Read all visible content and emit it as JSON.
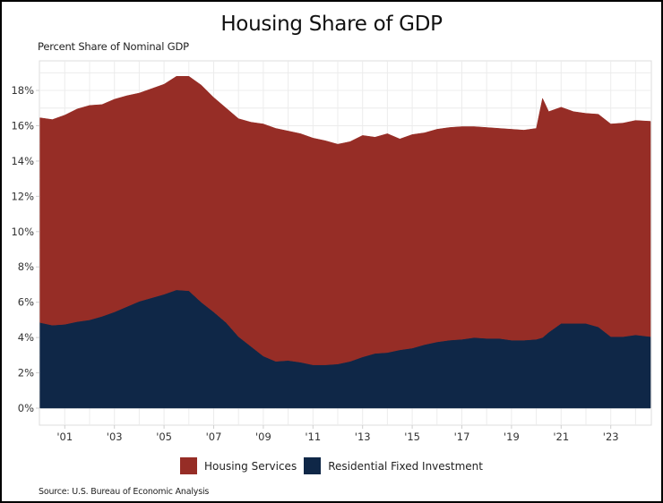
{
  "chart_data": {
    "type": "area",
    "stacked": true,
    "title": "Housing Share of GDP",
    "ylabel": "Percent Share of Nominal GDP",
    "xlabel": "",
    "source": "Source: U.S. Bureau of Economic Analysis",
    "xlim": [
      2000.0,
      2024.6
    ],
    "ylim": [
      0,
      19.5
    ],
    "grid": true,
    "legend_position": "bottom",
    "y_ticks": [
      0,
      2,
      4,
      6,
      8,
      10,
      12,
      14,
      16,
      18
    ],
    "y_tick_labels": [
      "0%",
      "2%",
      "4%",
      "6%",
      "8%",
      "10%",
      "12%",
      "14%",
      "16%",
      "18%"
    ],
    "x_ticks": [
      2001,
      2003,
      2005,
      2007,
      2009,
      2011,
      2013,
      2015,
      2017,
      2019,
      2021,
      2023
    ],
    "x_tick_labels": [
      "'01",
      "'03",
      "'05",
      "'07",
      "'09",
      "'11",
      "'13",
      "'15",
      "'17",
      "'19",
      "'21",
      "'23"
    ],
    "x": [
      2000.0,
      2000.5,
      2001.0,
      2001.5,
      2002.0,
      2002.5,
      2003.0,
      2003.5,
      2004.0,
      2004.5,
      2005.0,
      2005.5,
      2006.0,
      2006.5,
      2007.0,
      2007.5,
      2008.0,
      2008.5,
      2009.0,
      2009.5,
      2010.0,
      2010.5,
      2011.0,
      2011.5,
      2012.0,
      2012.5,
      2013.0,
      2013.5,
      2014.0,
      2014.5,
      2015.0,
      2015.5,
      2016.0,
      2016.5,
      2017.0,
      2017.5,
      2018.0,
      2018.5,
      2019.0,
      2019.5,
      2020.0,
      2020.25,
      2020.5,
      2021.0,
      2021.5,
      2022.0,
      2022.5,
      2023.0,
      2023.5,
      2024.0,
      2024.6
    ],
    "series": [
      {
        "name": "Residential Fixed Investment",
        "color": "#0f2747",
        "values": [
          4.85,
          4.7,
          4.75,
          4.9,
          5.0,
          5.2,
          5.45,
          5.75,
          6.05,
          6.25,
          6.45,
          6.7,
          6.65,
          6.0,
          5.45,
          4.85,
          4.05,
          3.5,
          2.95,
          2.65,
          2.7,
          2.6,
          2.45,
          2.45,
          2.5,
          2.65,
          2.9,
          3.1,
          3.15,
          3.3,
          3.4,
          3.6,
          3.75,
          3.85,
          3.9,
          4.0,
          3.95,
          3.95,
          3.85,
          3.85,
          3.9,
          4.0,
          4.3,
          4.8,
          4.8,
          4.8,
          4.6,
          4.05,
          4.05,
          4.15,
          4.05
        ]
      },
      {
        "name": "Housing Services",
        "color": "#962d26",
        "values": [
          11.6,
          11.65,
          11.85,
          12.05,
          12.15,
          12.0,
          12.05,
          11.95,
          11.8,
          11.85,
          11.9,
          12.1,
          12.15,
          12.3,
          12.15,
          12.15,
          12.35,
          12.7,
          13.15,
          13.2,
          13.0,
          12.95,
          12.85,
          12.7,
          12.45,
          12.45,
          12.55,
          12.25,
          12.4,
          11.95,
          12.1,
          12.0,
          12.05,
          12.05,
          12.05,
          11.95,
          11.95,
          11.9,
          11.95,
          11.9,
          11.95,
          13.55,
          12.5,
          12.25,
          12.0,
          11.9,
          12.05,
          12.05,
          12.1,
          12.15,
          12.2
        ]
      }
    ]
  }
}
